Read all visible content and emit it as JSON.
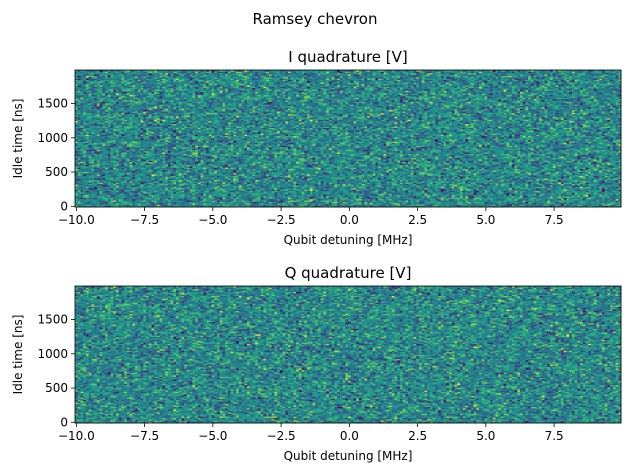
{
  "figure": {
    "suptitle": "Ramsey chevron"
  },
  "chart_data": [
    {
      "type": "heatmap",
      "title": "I quadrature [V]",
      "xlabel": "Qubit detuning [MHz]",
      "ylabel": "Idle time [ns]",
      "x_range": [
        -10.0,
        9.9
      ],
      "y_range": [
        0,
        1980
      ],
      "x_ticks": [
        -10.0,
        -7.5,
        -5.0,
        -2.5,
        0.0,
        2.5,
        5.0,
        7.5
      ],
      "x_tick_labels": [
        "−10.0",
        "−7.5",
        "−5.0",
        "−2.5",
        "0.0",
        "2.5",
        "5.0",
        "7.5"
      ],
      "y_ticks": [
        0,
        500,
        1000,
        1500
      ],
      "y_tick_labels": [
        "0",
        "500",
        "1000",
        "1500"
      ],
      "grid": false,
      "colormap": "viridis",
      "value_description": "noise-like random values"
    },
    {
      "type": "heatmap",
      "title": "Q quadrature [V]",
      "xlabel": "Qubit detuning [MHz]",
      "ylabel": "Idle time [ns]",
      "x_range": [
        -10.0,
        9.9
      ],
      "y_range": [
        0,
        1980
      ],
      "x_ticks": [
        -10.0,
        -7.5,
        -5.0,
        -2.5,
        0.0,
        2.5,
        5.0,
        7.5
      ],
      "x_tick_labels": [
        "−10.0",
        "−7.5",
        "−5.0",
        "−2.5",
        "0.0",
        "2.5",
        "5.0",
        "7.5"
      ],
      "y_ticks": [
        0,
        500,
        1000,
        1500
      ],
      "y_tick_labels": [
        "0",
        "500",
        "1000",
        "1500"
      ],
      "grid": false,
      "colormap": "viridis",
      "value_description": "noise-like random values"
    }
  ]
}
